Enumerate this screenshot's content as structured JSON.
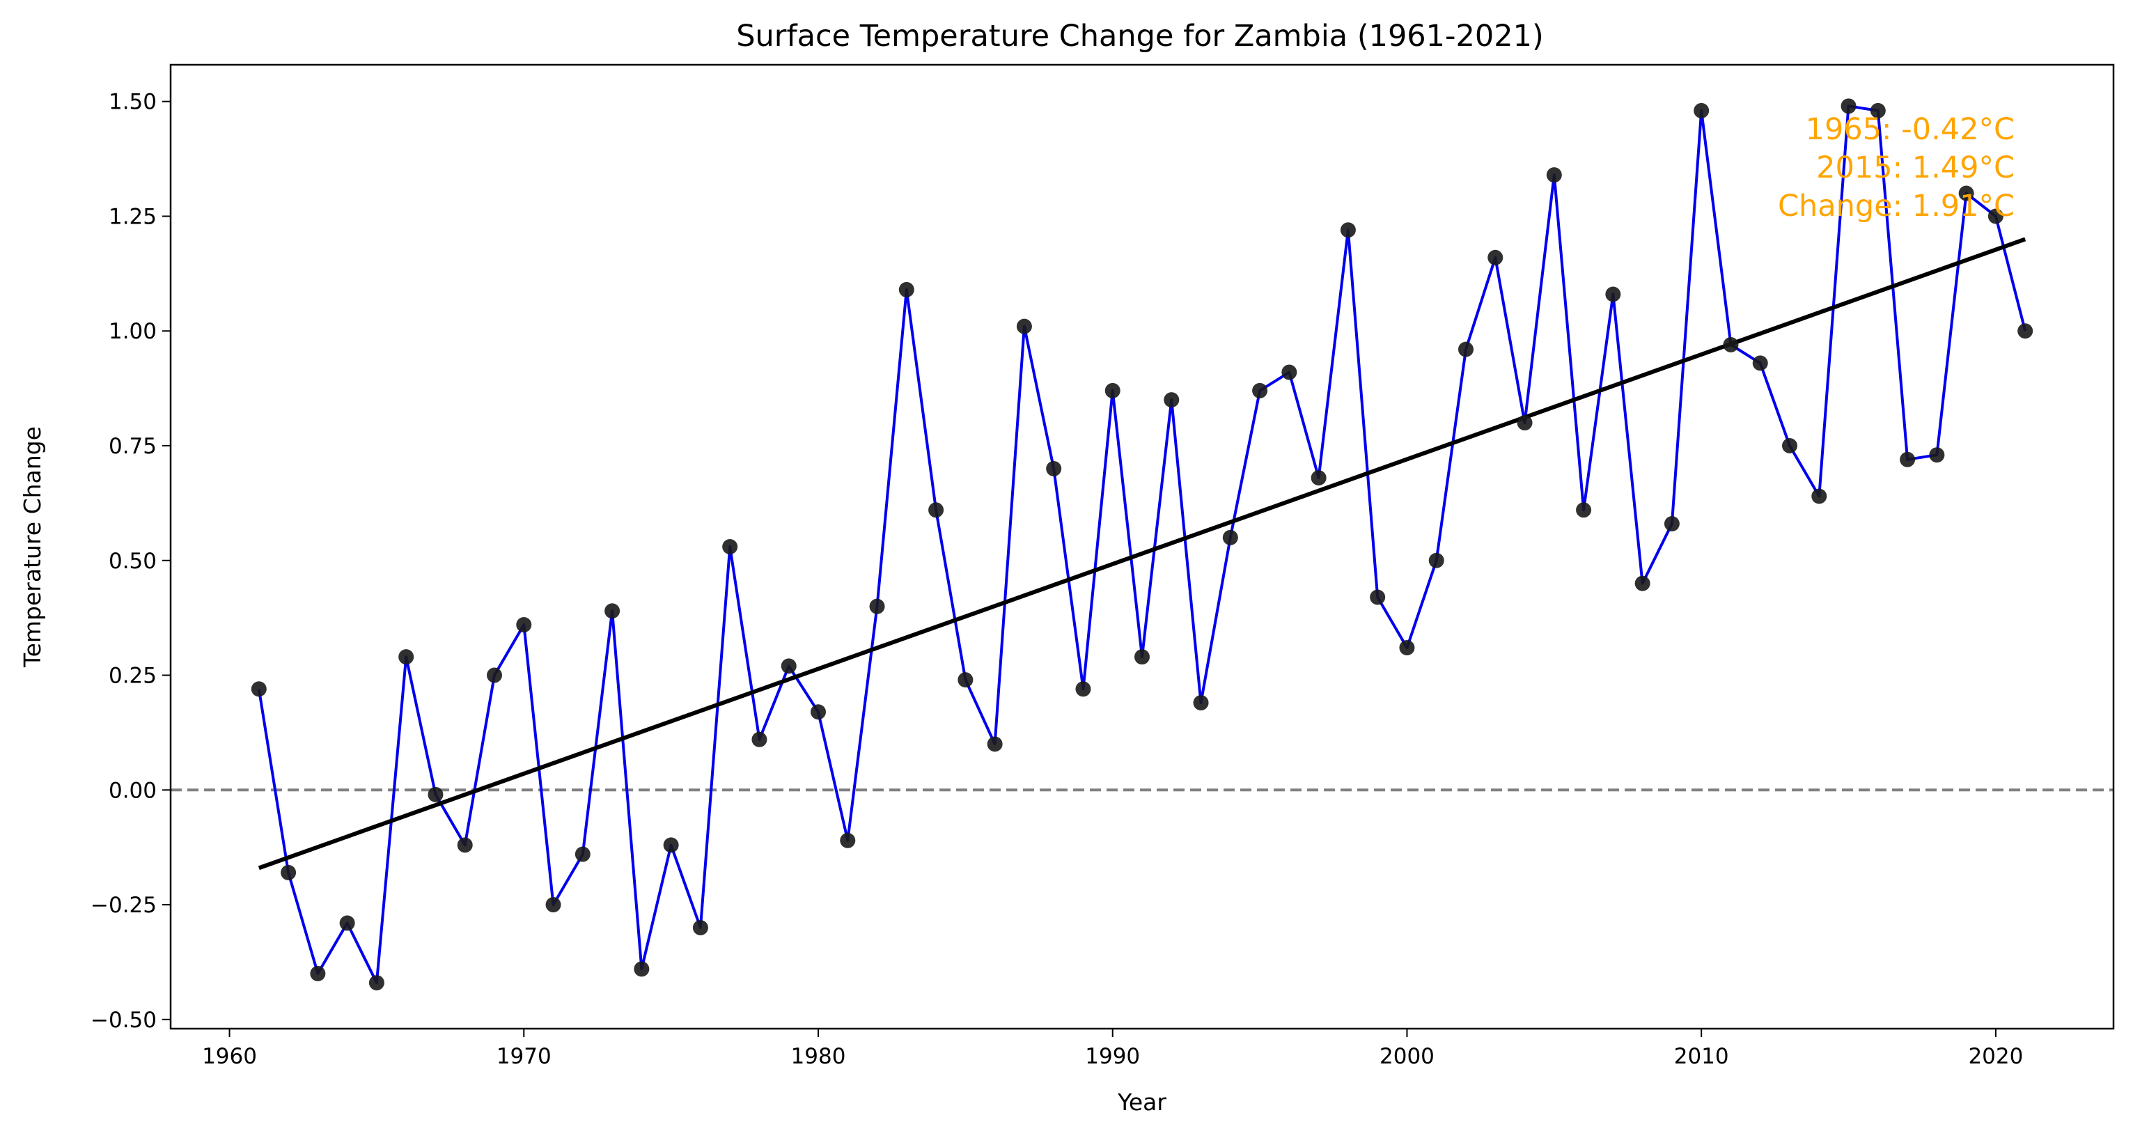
{
  "chart_data": {
    "type": "line",
    "title": "Surface Temperature Change for Zambia (1961-2021)",
    "xlabel": "Year",
    "ylabel": "Temperature Change",
    "xlim": [
      1958,
      2024
    ],
    "ylim": [
      -0.52,
      1.58
    ],
    "x_ticks": [
      1960,
      1970,
      1980,
      1990,
      2000,
      2010,
      2020
    ],
    "y_ticks": [
      -0.5,
      -0.25,
      0.0,
      0.25,
      0.5,
      0.75,
      1.0,
      1.25,
      1.5
    ],
    "y_tick_labels": [
      "−0.50",
      "−0.25",
      "0.00",
      "0.25",
      "0.50",
      "0.75",
      "1.00",
      "1.25",
      "1.50"
    ],
    "grid": false,
    "series": [
      {
        "x": [
          1961,
          1962,
          1963,
          1964,
          1965,
          1966,
          1967,
          1968,
          1969,
          1970,
          1971,
          1972,
          1973,
          1974,
          1975,
          1976,
          1977,
          1978,
          1979,
          1980,
          1981,
          1982,
          1983,
          1984,
          1985,
          1986,
          1987,
          1988,
          1989,
          1990,
          1991,
          1992,
          1993,
          1994,
          1995,
          1996,
          1997,
          1998,
          1999,
          2000,
          2001,
          2002,
          2003,
          2004,
          2005,
          2006,
          2007,
          2008,
          2009,
          2010,
          2011,
          2012,
          2013,
          2014,
          2015,
          2016,
          2017,
          2018,
          2019,
          2020,
          2021
        ],
        "values": [
          0.22,
          -0.18,
          -0.4,
          -0.29,
          -0.42,
          0.29,
          -0.01,
          -0.12,
          0.25,
          0.36,
          -0.25,
          -0.14,
          0.39,
          -0.39,
          -0.12,
          -0.3,
          0.53,
          0.11,
          0.27,
          0.17,
          -0.11,
          0.4,
          1.09,
          0.61,
          0.24,
          0.1,
          1.01,
          0.7,
          0.22,
          0.87,
          0.29,
          0.85,
          0.19,
          0.55,
          0.87,
          0.91,
          0.68,
          1.22,
          0.42,
          0.31,
          0.5,
          0.96,
          1.16,
          0.8,
          1.34,
          0.61,
          1.08,
          0.45,
          0.58,
          1.48,
          0.97,
          0.93,
          0.75,
          0.64,
          1.49,
          1.48,
          0.72,
          0.73,
          1.3,
          1.25,
          1.0
        ],
        "color": "#0000ee",
        "marker_color": "#1a1a1a"
      }
    ],
    "trend_line": {
      "x": [
        1961,
        2021
      ],
      "y": [
        -0.17,
        1.2
      ],
      "color": "#000000"
    },
    "reference_line": {
      "y": 0.0,
      "style": "dashed",
      "color": "#808080"
    },
    "annotation": {
      "lines": [
        "1965: -0.42°C",
        "2015: 1.49°C",
        "Change: 1.91°C"
      ],
      "color": "#ffa500",
      "placement": "top-right"
    }
  }
}
